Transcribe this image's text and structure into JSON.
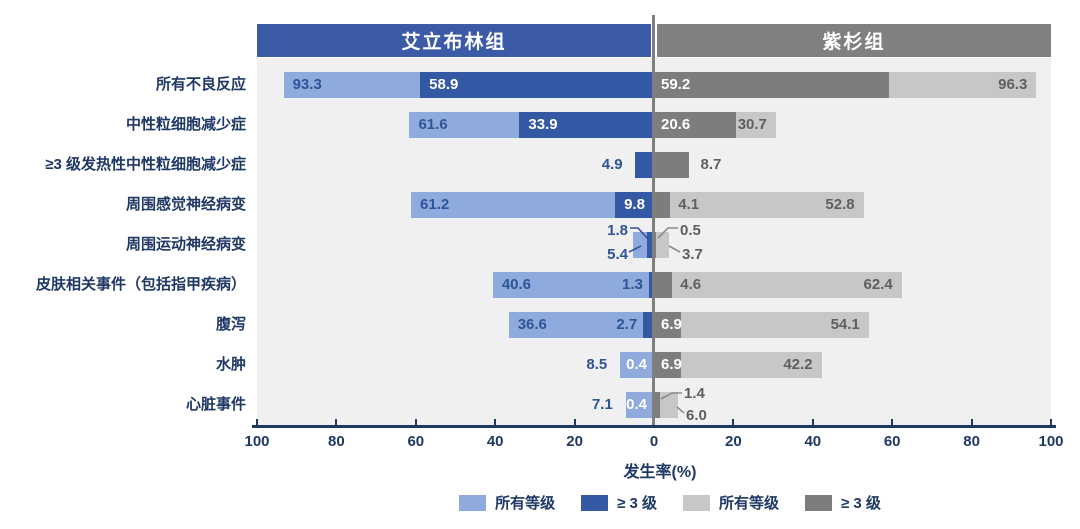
{
  "chart_data": {
    "type": "bar",
    "subtype": "diverging-butterfly",
    "title": "",
    "xlabel": "发生率(%)",
    "ylabel": "",
    "x_ticks": [
      "100",
      "80",
      "60",
      "40",
      "20",
      "0",
      "20",
      "40",
      "60",
      "80",
      "100"
    ],
    "axis_max_per_side": 100,
    "grid": false,
    "legend_position": "bottom",
    "groups": [
      {
        "id": "eribulin",
        "label": "艾立布林组",
        "side": "left",
        "header_color": "#3B5BA7",
        "all_color": "#8FAADC",
        "g3_color": "#3459A4",
        "header_text_color": "#FFFFFF"
      },
      {
        "id": "taxane",
        "label": "紫杉组",
        "side": "right",
        "header_color": "#808080",
        "all_color": "#C7C7C7",
        "g3_color": "#7D7D7D",
        "header_text_color": "#FFFFFF"
      }
    ],
    "series_names": {
      "all": "所有等级",
      "g3": "≥ 3 级"
    },
    "legend": [
      {
        "label": "所有等级",
        "color": "#8FAADC"
      },
      {
        "label": "≥ 3 级",
        "color": "#3459A4"
      },
      {
        "label": "所有等级",
        "color": "#C7C7C7"
      },
      {
        "label": "≥ 3 级",
        "color": "#7D7D7D"
      }
    ],
    "rows": [
      {
        "category": "所有不良反应",
        "left_all": 93.3,
        "left_g3": 58.9,
        "right_g3": 59.2,
        "right_all": 96.3,
        "lp_all": "in",
        "lp_g3": "dark",
        "rp_g3": "dark",
        "rp_all": "in"
      },
      {
        "category": "中性粒细胞减少症",
        "left_all": 61.6,
        "left_g3": 33.9,
        "right_g3": 20.6,
        "right_all": 30.7,
        "lp_all": "in",
        "lp_g3": "dark",
        "rp_g3": "dark",
        "rp_all": "in"
      },
      {
        "category": "≥3 级发热性中性粒细胞减少症",
        "left_all": null,
        "left_g3": 4.9,
        "right_g3": 8.7,
        "right_all": null,
        "lp_all": null,
        "lp_g3": "out",
        "rp_g3": "out",
        "rp_all": null
      },
      {
        "category": "周围感觉神经病变",
        "left_all": 61.2,
        "left_g3": 9.8,
        "right_g3": 4.1,
        "right_all": 52.8,
        "lp_all": "in",
        "lp_g3": "dark",
        "rp_g3": "onlight",
        "rp_all": "in"
      },
      {
        "category": "周围运动神经病变",
        "left_all": 5.4,
        "left_g3": 1.8,
        "right_g3": 0.5,
        "right_all": 3.7,
        "lp_all": "callout",
        "lp_g3": "callout",
        "rp_g3": "callout",
        "rp_all": "callout"
      },
      {
        "category": "皮肤相关事件（包括指甲疾病）",
        "left_all": 40.6,
        "left_g3": 1.3,
        "right_g3": 4.6,
        "right_all": 62.4,
        "lp_all": "in",
        "lp_g3": "onlight",
        "rp_g3": "onlight",
        "rp_all": "in"
      },
      {
        "category": "腹泻",
        "left_all": 36.6,
        "left_g3": 2.7,
        "right_g3": 6.9,
        "right_all": 54.1,
        "lp_all": "in",
        "lp_g3": "onlight",
        "rp_g3": "dark",
        "rp_all": "in"
      },
      {
        "category": "水肿",
        "left_all": 8.5,
        "left_g3": 0.4,
        "right_g3": 6.9,
        "right_all": 42.2,
        "lp_all": "out",
        "lp_g3": "whitelight",
        "rp_g3": "dark",
        "rp_all": "in"
      },
      {
        "category": "心脏事件",
        "left_all": 7.1,
        "left_g3": 0.4,
        "right_g3": 1.4,
        "right_all": 6.0,
        "lp_all": "out",
        "lp_g3": "whitelight",
        "rp_g3": "callout",
        "rp_all": "callout"
      }
    ],
    "colors": {
      "page_bg": "#FFFFFF",
      "plot_bg": "#F0F0F1",
      "axis_line": "#1F3864",
      "tick_text": "#1F3864",
      "category_text": "#1F3864",
      "center_line": "#7F7F7F",
      "white_label": "#FFFFFF",
      "left_value_text": "#2E5596",
      "right_value_text": "#5F5F5F",
      "leader_left": "#2E5596",
      "leader_right": "#8C8C8C",
      "legend_text": "#1F3864"
    }
  }
}
